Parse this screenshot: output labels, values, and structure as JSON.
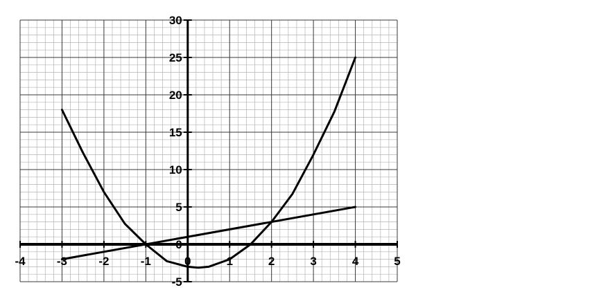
{
  "chart_data": {
    "type": "line",
    "title": "",
    "xlabel": "",
    "ylabel": "",
    "xlim": [
      -4,
      5
    ],
    "ylim": [
      -5,
      30
    ],
    "x_ticks": [
      -4,
      -3,
      -2,
      -1,
      0,
      1,
      2,
      3,
      4,
      5
    ],
    "y_ticks": [
      -5,
      0,
      5,
      10,
      15,
      20,
      25,
      30
    ],
    "x_tick_labels": [
      "-4",
      "-3",
      "-2",
      "-1",
      "0",
      "1",
      "2",
      "3",
      "4",
      "5"
    ],
    "y_tick_labels": [
      "-5",
      "0",
      "5",
      "10",
      "15",
      "20",
      "25",
      "30"
    ],
    "grid": true,
    "minor_grid": true,
    "legend": "none",
    "series": [
      {
        "x": [
          -3,
          -2.5,
          -2,
          -1.5,
          -1,
          -0.5,
          0,
          0.25,
          0.5,
          1,
          1.5,
          2,
          2.5,
          3,
          3.5,
          4
        ],
        "y": [
          18,
          12.25,
          7,
          2.75,
          0,
          -2.25,
          -3,
          -3.125,
          -3,
          -2,
          0,
          3,
          6.75,
          12,
          17.75,
          25
        ],
        "color": "#000000"
      },
      {
        "x": [
          -3,
          4
        ],
        "y": [
          -2,
          5
        ],
        "color": "#000000"
      }
    ]
  }
}
